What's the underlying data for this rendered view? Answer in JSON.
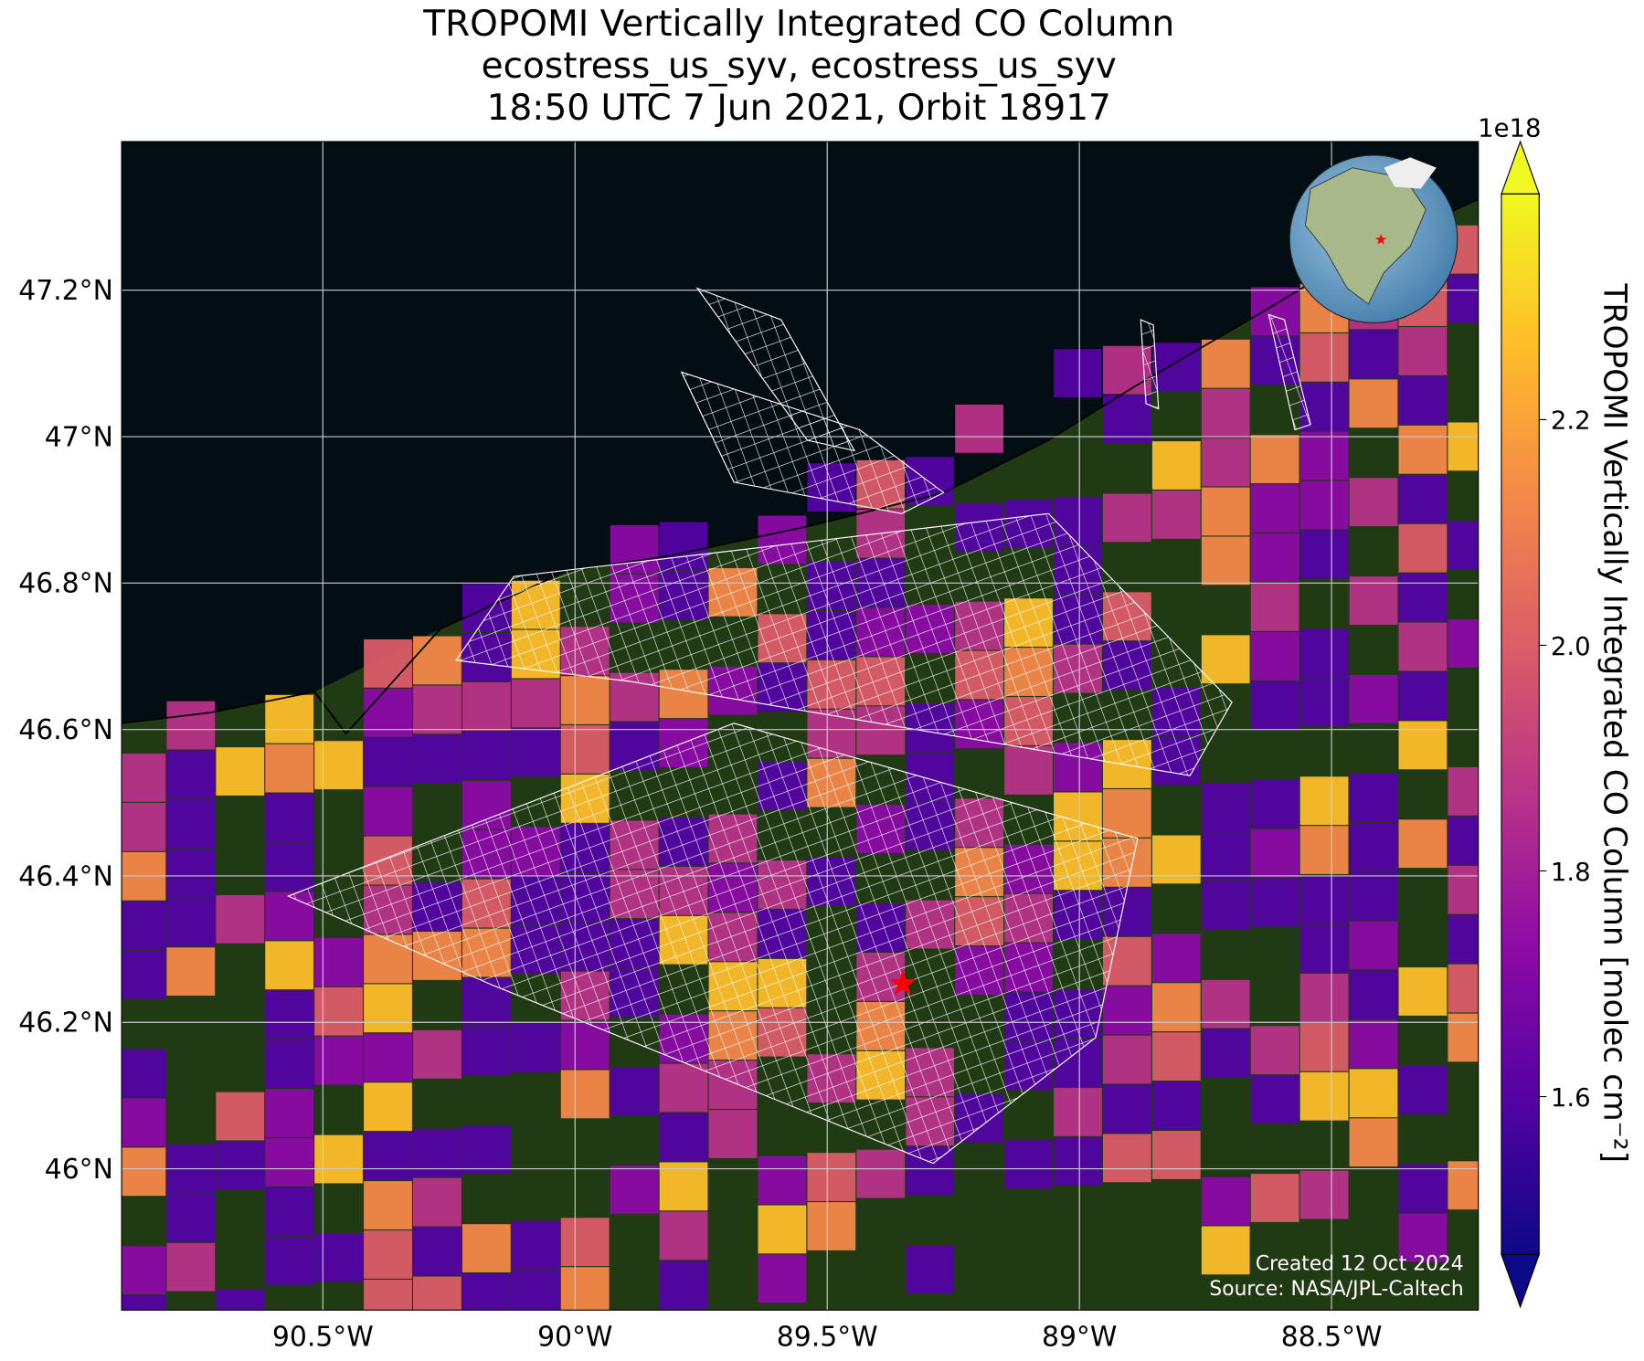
{
  "title_lines": [
    "TROPOMI Vertically Integrated CO Column",
    "ecostress_us_syv, ecostress_us_syv",
    "18:50 UTC 7 Jun 2021, Orbit 18917"
  ],
  "map": {
    "lon_range": [
      -90.899,
      -88.209
    ],
    "lat_range": [
      45.807,
      47.403
    ],
    "lon_ticks": [
      {
        "value": -90.5,
        "label": "90.5°W"
      },
      {
        "value": -90,
        "label": "90°W"
      },
      {
        "value": -89.5,
        "label": "89.5°W"
      },
      {
        "value": -89,
        "label": "89°W"
      },
      {
        "value": -88.5,
        "label": "88.5°W"
      }
    ],
    "lat_ticks": [
      {
        "value": 46,
        "label": "46°N"
      },
      {
        "value": 46.2,
        "label": "46.2°N"
      },
      {
        "value": 46.4,
        "label": "46.4°N"
      },
      {
        "value": 46.6,
        "label": "46.6°N"
      },
      {
        "value": 46.8,
        "label": "46.8°N"
      },
      {
        "value": 47,
        "label": "47°N"
      },
      {
        "value": 47.2,
        "label": "47.2°N"
      }
    ],
    "grid": true,
    "site": {
      "lon": -89.35,
      "lat": 46.25,
      "color": "#ff0000"
    }
  },
  "colorbar": {
    "label": "TROPOMI Vertically Integrated CO Column [molec cm⁻²]",
    "offset_label": "1e18",
    "range": [
      1.46,
      2.4
    ],
    "ticks": [
      1.6,
      1.8,
      {
        "value": 2.0,
        "label": "2.0"
      },
      2.2
    ],
    "colormap": "plasma"
  },
  "credits": [
    "Created 12 Oct 2024",
    "Source: NASA/JPL-Caltech"
  ]
}
